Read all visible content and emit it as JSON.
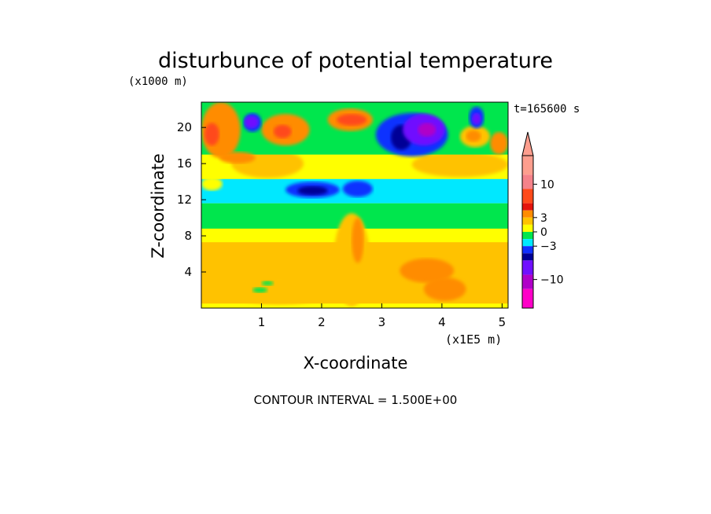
{
  "chart_data": {
    "type": "heatmap",
    "title": "disturbunce of potential temperature",
    "y_multiplier_label": "(x1000 m)",
    "x_multiplier_label": "(x1E5 m)",
    "time_label": "t=165600 s",
    "xlabel": "X-coordinate",
    "ylabel": "Z-coordinate",
    "footer": "CONTOUR INTERVAL = 1.500E+00",
    "x_ticks": [
      1,
      2,
      3,
      4,
      5
    ],
    "y_ticks": [
      4,
      8,
      12,
      16,
      20
    ],
    "xlim": [
      0,
      5.1
    ],
    "ylim": [
      0,
      22.8
    ],
    "contour_interval": 1.5,
    "colorbar": {
      "labels": [
        {
          "value": 10,
          "text": "10"
        },
        {
          "value": 3,
          "text": "3"
        },
        {
          "value": 0,
          "text": "0"
        },
        {
          "value": -3,
          "text": "−3"
        },
        {
          "value": -10,
          "text": "−10"
        }
      ],
      "levels": [
        {
          "min": 12,
          "max": 16,
          "color": "#fd9e8e"
        },
        {
          "min": 9,
          "max": 12,
          "color": "#f5828a"
        },
        {
          "min": 6,
          "max": 9,
          "color": "#ff4a1a"
        },
        {
          "min": 4.5,
          "max": 6,
          "color": "#e4140c"
        },
        {
          "min": 3,
          "max": 4.5,
          "color": "#ff8c00"
        },
        {
          "min": 1.5,
          "max": 3,
          "color": "#ffc200"
        },
        {
          "min": 0,
          "max": 1.5,
          "color": "#ffff00"
        },
        {
          "min": -1.5,
          "max": 0,
          "color": "#00e64d"
        },
        {
          "min": -3,
          "max": -1.5,
          "color": "#00e8ff"
        },
        {
          "min": -4.5,
          "max": -3,
          "color": "#1030ff"
        },
        {
          "min": -6,
          "max": -4.5,
          "color": "#000096"
        },
        {
          "min": -9,
          "max": -6,
          "color": "#7010ff"
        },
        {
          "min": -12,
          "max": -9,
          "color": "#b000c8"
        },
        {
          "min": -16,
          "max": -12,
          "color": "#ff00c8"
        }
      ]
    },
    "field_regions": [
      {
        "x": [
          0,
          5.1
        ],
        "z": [
          0,
          22.8
        ],
        "value": 0.7
      },
      {
        "x": [
          0,
          5.1
        ],
        "z": [
          0.5,
          7.3
        ],
        "value": 1.8
      },
      {
        "x": [
          0,
          5.1
        ],
        "z": [
          7.3,
          8.8
        ],
        "value": 0.9
      },
      {
        "x": [
          0,
          5.1
        ],
        "z": [
          8.8,
          11.6
        ],
        "value": -0.7
      },
      {
        "x": [
          0,
          5.1
        ],
        "z": [
          11.6,
          14.3
        ],
        "value": -2.2
      },
      {
        "x": [
          0,
          5.1
        ],
        "z": [
          14.3,
          17
        ],
        "value": 0.6
      },
      {
        "x": [
          0.5,
          1.7
        ],
        "z": [
          14.4,
          17.6
        ],
        "value": 1.8
      },
      {
        "x": [
          3.5,
          5.1
        ],
        "z": [
          14.5,
          17.3
        ],
        "value": 1.6
      },
      {
        "x": [
          0,
          5.1
        ],
        "z": [
          17,
          22.8
        ],
        "value": -0.6
      },
      {
        "x": [
          1.4,
          2.3
        ],
        "z": [
          12.2,
          14
        ],
        "value": -4
      },
      {
        "x": [
          1.6,
          2.1
        ],
        "z": [
          12.5,
          13.5
        ],
        "value": -5.2
      },
      {
        "x": [
          2.35,
          2.85
        ],
        "z": [
          12.3,
          14.1
        ],
        "value": -3.5
      },
      {
        "x": [
          0,
          0.65
        ],
        "z": [
          16.6,
          22.8
        ],
        "value": 3.6
      },
      {
        "x": [
          0.05,
          0.3
        ],
        "z": [
          18,
          20.5
        ],
        "value": 6.5
      },
      {
        "x": [
          0.3,
          0.9
        ],
        "z": [
          16,
          17.3
        ],
        "value": 3.6
      },
      {
        "x": [
          1,
          1.8
        ],
        "z": [
          18,
          21.5
        ],
        "value": 3.6
      },
      {
        "x": [
          1.2,
          1.5
        ],
        "z": [
          18.8,
          20.3
        ],
        "value": 6.5
      },
      {
        "x": [
          0.7,
          1
        ],
        "z": [
          19.5,
          21.6
        ],
        "value": -3.5
      },
      {
        "x": [
          0.72,
          0.95
        ],
        "z": [
          19.9,
          21.3
        ],
        "value": -7.2
      },
      {
        "x": [
          2.1,
          2.85
        ],
        "z": [
          19.6,
          22.1
        ],
        "value": 3.6
      },
      {
        "x": [
          2.25,
          2.75
        ],
        "z": [
          20.2,
          21.5
        ],
        "value": 6.5
      },
      {
        "x": [
          2.9,
          4.1
        ],
        "z": [
          16.8,
          21.6
        ],
        "value": -3.5
      },
      {
        "x": [
          3.15,
          3.5
        ],
        "z": [
          17.5,
          20.3
        ],
        "value": -5.2
      },
      {
        "x": [
          3.35,
          4.05
        ],
        "z": [
          18,
          21.5
        ],
        "value": -7.5
      },
      {
        "x": [
          3.6,
          3.9
        ],
        "z": [
          19,
          20.5
        ],
        "value": -10
      },
      {
        "x": [
          4.3,
          4.8
        ],
        "z": [
          17.8,
          20.2
        ],
        "value": 2.3
      },
      {
        "x": [
          4.4,
          4.65
        ],
        "z": [
          18.4,
          19.7
        ],
        "value": 3.6
      },
      {
        "x": [
          4.45,
          4.7
        ],
        "z": [
          19.9,
          22.3
        ],
        "value": -3.5
      },
      {
        "x": [
          4.5,
          4.65
        ],
        "z": [
          20.3,
          21.6
        ],
        "value": -7.2
      },
      {
        "x": [
          4.8,
          5.1
        ],
        "z": [
          17,
          19.5
        ],
        "value": 3.6
      },
      {
        "x": [
          2.2,
          2.8
        ],
        "z": [
          0.2,
          10.5
        ],
        "value": 2.2
      },
      {
        "x": [
          2.5,
          2.7
        ],
        "z": [
          5,
          10
        ],
        "value": 3.6
      },
      {
        "x": [
          3.3,
          4.2
        ],
        "z": [
          2.8,
          5.5
        ],
        "value": 3.6
      },
      {
        "x": [
          3.7,
          4.4
        ],
        "z": [
          0.8,
          3.4
        ],
        "value": 3.6
      },
      {
        "x": [
          0.4,
          2.2
        ],
        "z": [
          0.4,
          3.6
        ],
        "value": 2.2
      },
      {
        "x": [
          1,
          1.2
        ],
        "z": [
          2.5,
          3
        ],
        "value": -0.7
      },
      {
        "x": [
          0.85,
          1.1
        ],
        "z": [
          1.7,
          2.3
        ],
        "value": -0.7
      },
      {
        "x": [
          0,
          0.35
        ],
        "z": [
          13,
          14.5
        ],
        "value": 0.4
      }
    ]
  }
}
